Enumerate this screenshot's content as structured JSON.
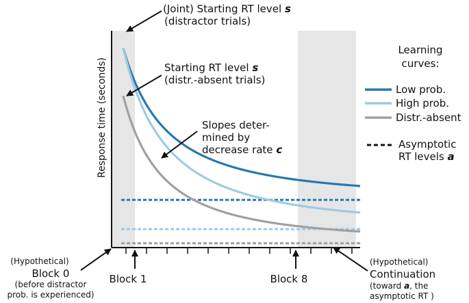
{
  "chart_data": {
    "type": "line",
    "title": "",
    "xlabel": "",
    "ylabel": "Response time (seconds)",
    "x_ticks_count": 12,
    "x_tick_labels": [
      {
        "label": "Block 1",
        "block": 1
      },
      {
        "label": "Block 8",
        "block": 8
      }
    ],
    "legend": {
      "placement": "right",
      "title": "Learning curves:",
      "entries": [
        {
          "name": "Low prob.",
          "color": "#2878b0",
          "style": "solid"
        },
        {
          "name": "High prob.",
          "color": "#9ecae1",
          "style": "solid"
        },
        {
          "name": "Distr.-absent",
          "color": "#a0a0a0",
          "style": "solid"
        },
        {
          "name": "Asymptotic RT levels",
          "symbol": "a",
          "color": "#111111",
          "style": "dashed"
        }
      ]
    },
    "series": [
      {
        "name": "Low prob.",
        "color": "#2878b0",
        "start": 0.92,
        "asymptote": 0.22,
        "rate": 0.34
      },
      {
        "name": "High prob.",
        "color": "#9ecae1",
        "start": 0.92,
        "asymptote": 0.085,
        "rate": 0.34
      },
      {
        "name": "Distr.-absent",
        "color": "#a0a0a0",
        "start": 0.7,
        "asymptote": 0.02,
        "rate": 0.38
      }
    ],
    "shaded_regions": [
      {
        "name": "Block 0",
        "from": 0,
        "to": 1
      },
      {
        "name": "Continuation",
        "from": 8,
        "to": 10.5
      }
    ],
    "annotations": {
      "joint_start": {
        "lines": [
          "(Joint) Starting RT level ",
          "(distractor trials)"
        ],
        "symbol": "s"
      },
      "absent_start": {
        "lines": [
          "Starting RT level ",
          "(distr.-absent trials)"
        ],
        "symbol": "s"
      },
      "slopes": {
        "lines": [
          "Slopes deter-",
          "mined by",
          "decrease rate "
        ],
        "symbol": "c"
      },
      "block0": {
        "lines": [
          "(Hypothetical)",
          "Block 0",
          "(before distractor",
          "prob. is experienced)"
        ]
      },
      "continuation": {
        "lines": [
          "(Hypothetical)",
          "Continuation",
          "(toward ",
          ", the",
          "asymptotic RT )"
        ],
        "symbol": "a"
      }
    }
  }
}
